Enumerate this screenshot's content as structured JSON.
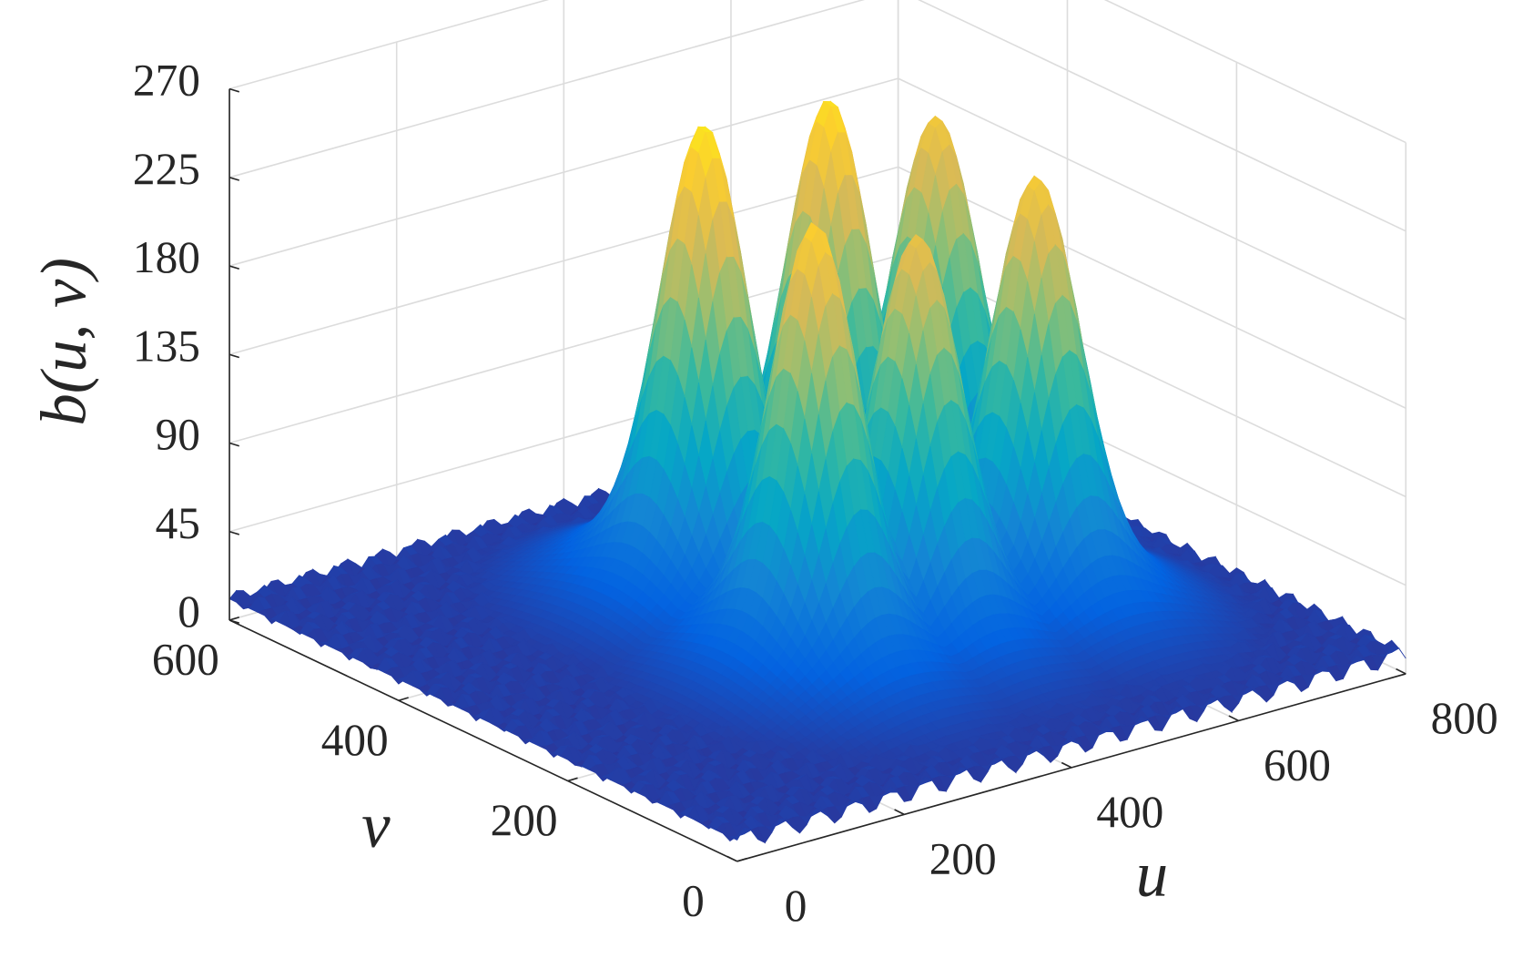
{
  "chart_data": {
    "type": "surface",
    "xlabel": "u",
    "ylabel": "v",
    "zlabel": "b(u, v)",
    "xlim": [
      0,
      800
    ],
    "xticks": [
      0,
      200,
      400,
      600,
      800
    ],
    "ylim": [
      0,
      600
    ],
    "yticks": [
      0,
      200,
      400,
      600
    ],
    "zlim": [
      0,
      270
    ],
    "zticks": [
      0,
      45,
      90,
      135,
      180,
      225,
      270
    ],
    "grid": true,
    "colormap": [
      "#352a87",
      "#0363e1",
      "#1485d4",
      "#06a7c6",
      "#38b99e",
      "#92bf73",
      "#d9ba56",
      "#fcce2e",
      "#f9fb0e"
    ],
    "peaks": [
      {
        "u": 345,
        "v": 380,
        "z": 256
      },
      {
        "u": 495,
        "v": 380,
        "z": 251
      },
      {
        "u": 623,
        "v": 380,
        "z": 227
      },
      {
        "u": 326,
        "v": 230,
        "z": 239
      },
      {
        "u": 449,
        "v": 230,
        "z": 218
      },
      {
        "u": 591,
        "v": 230,
        "z": 231
      }
    ]
  }
}
